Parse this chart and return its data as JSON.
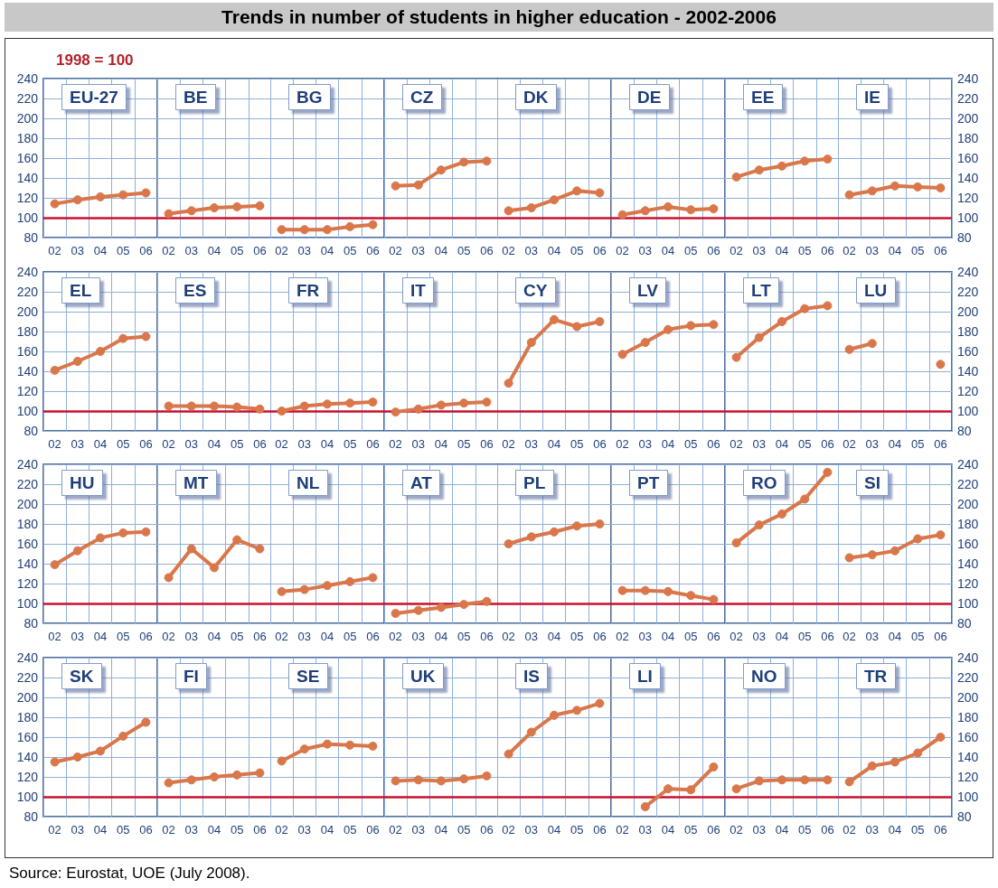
{
  "chart_data": [
    {
      "type": "other",
      "title": "Trends in number of students in higher education - 2002-2006",
      "subtitle": "1998 = 100",
      "annotations": [
        "Source: Eurostat, UOE (July 2008)."
      ]
    },
    {
      "type": "line",
      "title": "EU-27",
      "categories": [
        "02",
        "03",
        "04",
        "05",
        "06"
      ],
      "series": [
        {
          "color": "#d9774b",
          "values": [
            114,
            118,
            121,
            123,
            125
          ]
        }
      ],
      "ylim": [
        80,
        240
      ],
      "yticks": [
        80,
        100,
        120,
        140,
        160,
        180,
        200,
        220,
        240
      ],
      "ref_lines": [
        {
          "axis": "y",
          "value": 100,
          "color": "#c8102e"
        }
      ],
      "grid": true,
      "marker": "circle"
    },
    {
      "type": "line",
      "title": "BE",
      "categories": [
        "02",
        "03",
        "04",
        "05",
        "06"
      ],
      "series": [
        {
          "color": "#d9774b",
          "values": [
            104,
            107,
            110,
            111,
            112
          ]
        }
      ],
      "ylim": [
        80,
        240
      ],
      "yticks": [
        80,
        100,
        120,
        140,
        160,
        180,
        200,
        220,
        240
      ],
      "ref_lines": [
        {
          "axis": "y",
          "value": 100,
          "color": "#c8102e"
        }
      ],
      "grid": true,
      "marker": "circle",
      "tick_labels": "x"
    },
    {
      "type": "line",
      "title": "BG",
      "categories": [
        "02",
        "03",
        "04",
        "05",
        "06"
      ],
      "series": [
        {
          "color": "#d9774b",
          "values": [
            88,
            88,
            88,
            91,
            93
          ]
        }
      ],
      "ylim": [
        80,
        240
      ],
      "yticks": [
        80,
        100,
        120,
        140,
        160,
        180,
        200,
        220,
        240
      ],
      "ref_lines": [
        {
          "axis": "y",
          "value": 100,
          "color": "#c8102e"
        }
      ],
      "grid": true,
      "marker": "circle",
      "tick_labels": "x"
    },
    {
      "type": "line",
      "title": "CZ",
      "categories": [
        "02",
        "03",
        "04",
        "05",
        "06"
      ],
      "series": [
        {
          "color": "#d9774b",
          "values": [
            132,
            133,
            148,
            156,
            157
          ]
        }
      ],
      "ylim": [
        80,
        240
      ],
      "yticks": [
        80,
        100,
        120,
        140,
        160,
        180,
        200,
        220,
        240
      ],
      "ref_lines": [
        {
          "axis": "y",
          "value": 100,
          "color": "#c8102e"
        }
      ],
      "grid": true,
      "marker": "circle",
      "tick_labels": "x"
    },
    {
      "type": "line",
      "title": "DK",
      "categories": [
        "02",
        "03",
        "04",
        "05",
        "06"
      ],
      "series": [
        {
          "color": "#d9774b",
          "values": [
            107,
            110,
            118,
            127,
            125
          ]
        }
      ],
      "ylim": [
        80,
        240
      ],
      "yticks": [
        80,
        100,
        120,
        140,
        160,
        180,
        200,
        220,
        240
      ],
      "ref_lines": [
        {
          "axis": "y",
          "value": 100,
          "color": "#c8102e"
        }
      ],
      "grid": true,
      "marker": "circle",
      "tick_labels": "x"
    },
    {
      "type": "line",
      "title": "DE",
      "categories": [
        "02",
        "03",
        "04",
        "05",
        "06"
      ],
      "series": [
        {
          "color": "#d9774b",
          "values": [
            103,
            107,
            111,
            108,
            109
          ]
        }
      ],
      "ylim": [
        80,
        240
      ],
      "yticks": [
        80,
        100,
        120,
        140,
        160,
        180,
        200,
        220,
        240
      ],
      "ref_lines": [
        {
          "axis": "y",
          "value": 100,
          "color": "#c8102e"
        }
      ],
      "grid": true,
      "marker": "circle",
      "tick_labels": "x"
    },
    {
      "type": "line",
      "title": "EE",
      "categories": [
        "02",
        "03",
        "04",
        "05",
        "06"
      ],
      "series": [
        {
          "color": "#d9774b",
          "values": [
            141,
            148,
            152,
            157,
            159
          ]
        }
      ],
      "ylim": [
        80,
        240
      ],
      "yticks": [
        80,
        100,
        120,
        140,
        160,
        180,
        200,
        220,
        240
      ],
      "ref_lines": [
        {
          "axis": "y",
          "value": 100,
          "color": "#c8102e"
        }
      ],
      "grid": true,
      "marker": "circle",
      "tick_labels": "x"
    },
    {
      "type": "line",
      "title": "IE",
      "categories": [
        "02",
        "03",
        "04",
        "05",
        "06"
      ],
      "series": [
        {
          "color": "#d9774b",
          "values": [
            123,
            127,
            132,
            131,
            130
          ],
          "axis": "y2"
        }
      ],
      "y2lim": [
        80,
        240
      ],
      "y2ticks": [
        80,
        100,
        120,
        140,
        160,
        180,
        200,
        220,
        240
      ],
      "ref_lines": [
        {
          "axis": "y2",
          "value": 100,
          "color": "#c8102e"
        }
      ],
      "grid": true,
      "marker": "circle"
    },
    {
      "type": "line",
      "title": "EL",
      "categories": [
        "02",
        "03",
        "04",
        "05",
        "06"
      ],
      "series": [
        {
          "color": "#d9774b",
          "values": [
            141,
            150,
            160,
            173,
            175
          ]
        }
      ],
      "ylim": [
        80,
        240
      ],
      "yticks": [
        80,
        100,
        120,
        140,
        160,
        180,
        200,
        220,
        240
      ],
      "ref_lines": [
        {
          "axis": "y",
          "value": 100,
          "color": "#c8102e"
        }
      ],
      "grid": true,
      "marker": "circle"
    },
    {
      "type": "line",
      "title": "ES",
      "categories": [
        "02",
        "03",
        "04",
        "05",
        "06"
      ],
      "series": [
        {
          "color": "#d9774b",
          "values": [
            105,
            105,
            105,
            104,
            102
          ]
        }
      ],
      "ylim": [
        80,
        240
      ],
      "yticks": [
        80,
        100,
        120,
        140,
        160,
        180,
        200,
        220,
        240
      ],
      "ref_lines": [
        {
          "axis": "y",
          "value": 100,
          "color": "#c8102e"
        }
      ],
      "grid": true,
      "marker": "circle",
      "tick_labels": "x"
    },
    {
      "type": "line",
      "title": "FR",
      "categories": [
        "02",
        "03",
        "04",
        "05",
        "06"
      ],
      "series": [
        {
          "color": "#d9774b",
          "values": [
            100,
            105,
            107,
            108,
            109
          ]
        }
      ],
      "ylim": [
        80,
        240
      ],
      "yticks": [
        80,
        100,
        120,
        140,
        160,
        180,
        200,
        220,
        240
      ],
      "ref_lines": [
        {
          "axis": "y",
          "value": 100,
          "color": "#c8102e"
        }
      ],
      "grid": true,
      "marker": "circle",
      "tick_labels": "x"
    },
    {
      "type": "line",
      "title": "IT",
      "categories": [
        "02",
        "03",
        "04",
        "05",
        "06"
      ],
      "series": [
        {
          "color": "#d9774b",
          "values": [
            99,
            102,
            106,
            108,
            109
          ]
        }
      ],
      "ylim": [
        80,
        240
      ],
      "yticks": [
        80,
        100,
        120,
        140,
        160,
        180,
        200,
        220,
        240
      ],
      "ref_lines": [
        {
          "axis": "y",
          "value": 100,
          "color": "#c8102e"
        }
      ],
      "grid": true,
      "marker": "circle",
      "tick_labels": "x"
    },
    {
      "type": "line",
      "title": "CY",
      "categories": [
        "02",
        "03",
        "04",
        "05",
        "06"
      ],
      "series": [
        {
          "color": "#d9774b",
          "values": [
            128,
            169,
            192,
            185,
            190
          ]
        }
      ],
      "ylim": [
        80,
        240
      ],
      "yticks": [
        80,
        100,
        120,
        140,
        160,
        180,
        200,
        220,
        240
      ],
      "ref_lines": [
        {
          "axis": "y",
          "value": 100,
          "color": "#c8102e"
        }
      ],
      "grid": true,
      "marker": "circle",
      "tick_labels": "x"
    },
    {
      "type": "line",
      "title": "LV",
      "categories": [
        "02",
        "03",
        "04",
        "05",
        "06"
      ],
      "series": [
        {
          "color": "#d9774b",
          "values": [
            157,
            169,
            182,
            186,
            187
          ]
        }
      ],
      "ylim": [
        80,
        240
      ],
      "yticks": [
        80,
        100,
        120,
        140,
        160,
        180,
        200,
        220,
        240
      ],
      "ref_lines": [
        {
          "axis": "y",
          "value": 100,
          "color": "#c8102e"
        }
      ],
      "grid": true,
      "marker": "circle",
      "tick_labels": "x"
    },
    {
      "type": "line",
      "title": "LT",
      "categories": [
        "02",
        "03",
        "04",
        "05",
        "06"
      ],
      "series": [
        {
          "color": "#d9774b",
          "values": [
            154,
            174,
            190,
            203,
            206
          ]
        }
      ],
      "ylim": [
        80,
        240
      ],
      "yticks": [
        80,
        100,
        120,
        140,
        160,
        180,
        200,
        220,
        240
      ],
      "ref_lines": [
        {
          "axis": "y",
          "value": 100,
          "color": "#c8102e"
        }
      ],
      "grid": true,
      "marker": "circle",
      "tick_labels": "x"
    },
    {
      "type": "line",
      "title": "LU",
      "categories": [
        "02",
        "03",
        "04",
        "05",
        "06"
      ],
      "series": [
        {
          "color": "#d9774b",
          "values": [
            162,
            168,
            null,
            null,
            147
          ],
          "axis": "y2"
        }
      ],
      "y2lim": [
        80,
        240
      ],
      "y2ticks": [
        80,
        100,
        120,
        140,
        160,
        180,
        200,
        220,
        240
      ],
      "ref_lines": [
        {
          "axis": "y2",
          "value": 100,
          "color": "#c8102e"
        }
      ],
      "grid": true,
      "marker": "circle"
    },
    {
      "type": "line",
      "title": "HU",
      "categories": [
        "02",
        "03",
        "04",
        "05",
        "06"
      ],
      "series": [
        {
          "color": "#d9774b",
          "values": [
            139,
            153,
            166,
            171,
            172
          ]
        }
      ],
      "ylim": [
        80,
        240
      ],
      "yticks": [
        80,
        100,
        120,
        140,
        160,
        180,
        200,
        220,
        240
      ],
      "ref_lines": [
        {
          "axis": "y",
          "value": 100,
          "color": "#c8102e"
        }
      ],
      "grid": true,
      "marker": "circle"
    },
    {
      "type": "line",
      "title": "MT",
      "categories": [
        "02",
        "03",
        "04",
        "05",
        "06"
      ],
      "series": [
        {
          "color": "#d9774b",
          "values": [
            126,
            155,
            136,
            164,
            155
          ]
        }
      ],
      "ylim": [
        80,
        240
      ],
      "yticks": [
        80,
        100,
        120,
        140,
        160,
        180,
        200,
        220,
        240
      ],
      "ref_lines": [
        {
          "axis": "y",
          "value": 100,
          "color": "#c8102e"
        }
      ],
      "grid": true,
      "marker": "circle",
      "tick_labels": "x"
    },
    {
      "type": "line",
      "title": "NL",
      "categories": [
        "02",
        "03",
        "04",
        "05",
        "06"
      ],
      "series": [
        {
          "color": "#d9774b",
          "values": [
            112,
            114,
            118,
            122,
            126
          ]
        }
      ],
      "ylim": [
        80,
        240
      ],
      "yticks": [
        80,
        100,
        120,
        140,
        160,
        180,
        200,
        220,
        240
      ],
      "ref_lines": [
        {
          "axis": "y",
          "value": 100,
          "color": "#c8102e"
        }
      ],
      "grid": true,
      "marker": "circle",
      "tick_labels": "x"
    },
    {
      "type": "line",
      "title": "AT",
      "categories": [
        "02",
        "03",
        "04",
        "05",
        "06"
      ],
      "series": [
        {
          "color": "#d9774b",
          "values": [
            90,
            93,
            96,
            99,
            102
          ]
        }
      ],
      "ylim": [
        80,
        240
      ],
      "yticks": [
        80,
        100,
        120,
        140,
        160,
        180,
        200,
        220,
        240
      ],
      "ref_lines": [
        {
          "axis": "y",
          "value": 100,
          "color": "#c8102e"
        }
      ],
      "grid": true,
      "marker": "circle",
      "tick_labels": "x"
    },
    {
      "type": "line",
      "title": "PL",
      "categories": [
        "02",
        "03",
        "04",
        "05",
        "06"
      ],
      "series": [
        {
          "color": "#d9774b",
          "values": [
            160,
            167,
            172,
            178,
            180
          ]
        }
      ],
      "ylim": [
        80,
        240
      ],
      "yticks": [
        80,
        100,
        120,
        140,
        160,
        180,
        200,
        220,
        240
      ],
      "ref_lines": [
        {
          "axis": "y",
          "value": 100,
          "color": "#c8102e"
        }
      ],
      "grid": true,
      "marker": "circle",
      "tick_labels": "x"
    },
    {
      "type": "line",
      "title": "PT",
      "categories": [
        "02",
        "03",
        "04",
        "05",
        "06"
      ],
      "series": [
        {
          "color": "#d9774b",
          "values": [
            113,
            113,
            112,
            108,
            104
          ]
        }
      ],
      "ylim": [
        80,
        240
      ],
      "yticks": [
        80,
        100,
        120,
        140,
        160,
        180,
        200,
        220,
        240
      ],
      "ref_lines": [
        {
          "axis": "y",
          "value": 100,
          "color": "#c8102e"
        }
      ],
      "grid": true,
      "marker": "circle",
      "tick_labels": "x"
    },
    {
      "type": "line",
      "title": "RO",
      "categories": [
        "02",
        "03",
        "04",
        "05",
        "06"
      ],
      "series": [
        {
          "color": "#d9774b",
          "values": [
            161,
            179,
            190,
            205,
            232
          ]
        }
      ],
      "ylim": [
        80,
        240
      ],
      "yticks": [
        80,
        100,
        120,
        140,
        160,
        180,
        200,
        220,
        240
      ],
      "ref_lines": [
        {
          "axis": "y",
          "value": 100,
          "color": "#c8102e"
        }
      ],
      "grid": true,
      "marker": "circle",
      "tick_labels": "x"
    },
    {
      "type": "line",
      "title": "SI",
      "categories": [
        "02",
        "03",
        "04",
        "05",
        "06"
      ],
      "series": [
        {
          "color": "#d9774b",
          "values": [
            146,
            149,
            153,
            165,
            169
          ],
          "axis": "y2"
        }
      ],
      "y2lim": [
        80,
        240
      ],
      "y2ticks": [
        80,
        100,
        120,
        140,
        160,
        180,
        200,
        220,
        240
      ],
      "ref_lines": [
        {
          "axis": "y2",
          "value": 100,
          "color": "#c8102e"
        }
      ],
      "grid": true,
      "marker": "circle"
    },
    {
      "type": "line",
      "title": "SK",
      "categories": [
        "02",
        "03",
        "04",
        "05",
        "06"
      ],
      "series": [
        {
          "color": "#d9774b",
          "values": [
            135,
            140,
            146,
            161,
            175
          ]
        }
      ],
      "ylim": [
        80,
        240
      ],
      "yticks": [
        80,
        100,
        120,
        140,
        160,
        180,
        200,
        220,
        240
      ],
      "ref_lines": [
        {
          "axis": "y",
          "value": 100,
          "color": "#c8102e"
        }
      ],
      "grid": true,
      "marker": "circle"
    },
    {
      "type": "line",
      "title": "FI",
      "categories": [
        "02",
        "03",
        "04",
        "05",
        "06"
      ],
      "series": [
        {
          "color": "#d9774b",
          "values": [
            114,
            117,
            120,
            122,
            124
          ]
        }
      ],
      "ylim": [
        80,
        240
      ],
      "yticks": [
        80,
        100,
        120,
        140,
        160,
        180,
        200,
        220,
        240
      ],
      "ref_lines": [
        {
          "axis": "y",
          "value": 100,
          "color": "#c8102e"
        }
      ],
      "grid": true,
      "marker": "circle",
      "tick_labels": "x"
    },
    {
      "type": "line",
      "title": "SE",
      "categories": [
        "02",
        "03",
        "04",
        "05",
        "06"
      ],
      "series": [
        {
          "color": "#d9774b",
          "values": [
            136,
            148,
            153,
            152,
            151
          ]
        }
      ],
      "ylim": [
        80,
        240
      ],
      "yticks": [
        80,
        100,
        120,
        140,
        160,
        180,
        200,
        220,
        240
      ],
      "ref_lines": [
        {
          "axis": "y",
          "value": 100,
          "color": "#c8102e"
        }
      ],
      "grid": true,
      "marker": "circle",
      "tick_labels": "x"
    },
    {
      "type": "line",
      "title": "UK",
      "categories": [
        "02",
        "03",
        "04",
        "05",
        "06"
      ],
      "series": [
        {
          "color": "#d9774b",
          "values": [
            116,
            117,
            116,
            118,
            121
          ]
        }
      ],
      "ylim": [
        80,
        240
      ],
      "yticks": [
        80,
        100,
        120,
        140,
        160,
        180,
        200,
        220,
        240
      ],
      "ref_lines": [
        {
          "axis": "y",
          "value": 100,
          "color": "#c8102e"
        }
      ],
      "grid": true,
      "marker": "circle",
      "tick_labels": "x"
    },
    {
      "type": "line",
      "title": "IS",
      "categories": [
        "02",
        "03",
        "04",
        "05",
        "06"
      ],
      "series": [
        {
          "color": "#d9774b",
          "values": [
            143,
            165,
            182,
            187,
            194
          ]
        }
      ],
      "ylim": [
        80,
        240
      ],
      "yticks": [
        80,
        100,
        120,
        140,
        160,
        180,
        200,
        220,
        240
      ],
      "ref_lines": [
        {
          "axis": "y",
          "value": 100,
          "color": "#c8102e"
        }
      ],
      "grid": true,
      "marker": "circle",
      "tick_labels": "x"
    },
    {
      "type": "line",
      "title": "LI",
      "categories": [
        "02",
        "03",
        "04",
        "05",
        "06"
      ],
      "series": [
        {
          "color": "#d9774b",
          "values": [
            null,
            90,
            108,
            107,
            130
          ]
        }
      ],
      "ylim": [
        80,
        240
      ],
      "yticks": [
        80,
        100,
        120,
        140,
        160,
        180,
        200,
        220,
        240
      ],
      "ref_lines": [
        {
          "axis": "y",
          "value": 100,
          "color": "#c8102e"
        }
      ],
      "grid": true,
      "marker": "circle",
      "tick_labels": "x"
    },
    {
      "type": "line",
      "title": "NO",
      "categories": [
        "02",
        "03",
        "04",
        "05",
        "06"
      ],
      "series": [
        {
          "color": "#d9774b",
          "values": [
            108,
            116,
            117,
            117,
            117
          ]
        }
      ],
      "ylim": [
        80,
        240
      ],
      "yticks": [
        80,
        100,
        120,
        140,
        160,
        180,
        200,
        220,
        240
      ],
      "ref_lines": [
        {
          "axis": "y",
          "value": 100,
          "color": "#c8102e"
        }
      ],
      "grid": true,
      "marker": "circle",
      "tick_labels": "x"
    },
    {
      "type": "line",
      "title": "TR",
      "categories": [
        "02",
        "03",
        "04",
        "05",
        "06"
      ],
      "series": [
        {
          "color": "#d9774b",
          "values": [
            115,
            131,
            135,
            144,
            160
          ],
          "axis": "y2"
        }
      ],
      "y2lim": [
        80,
        240
      ],
      "y2ticks": [
        80,
        100,
        120,
        140,
        160,
        180,
        200,
        220,
        240
      ],
      "ref_lines": [
        {
          "axis": "y2",
          "value": 100,
          "color": "#c8102e"
        }
      ],
      "grid": true,
      "marker": "circle"
    }
  ]
}
